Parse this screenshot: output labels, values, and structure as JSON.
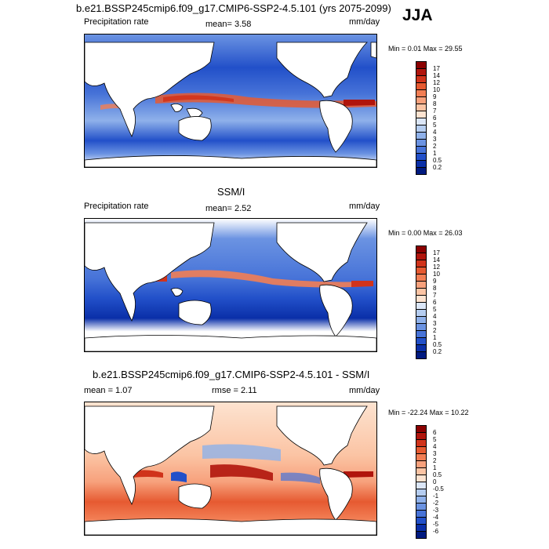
{
  "header": {
    "title": "b.e21.BSSP245cmip6.f09_g17.CMIP6-SSP2-4.5.101 (yrs 2075-2099)",
    "season": "JJA"
  },
  "panels": [
    {
      "title": "",
      "left_label": "Precipitation rate",
      "center_label": "mean=  3.58",
      "right_label": "mm/day",
      "minmax": "Min =   0.01 Max =   29.55",
      "colorbar_labels": [
        "17",
        "14",
        "12",
        "10",
        "9",
        "8",
        "7",
        "6",
        "5",
        "4",
        "3",
        "2",
        "1",
        "0.5",
        "0.2"
      ],
      "colorbar_colors": [
        "#8b0000",
        "#b0150c",
        "#d0331b",
        "#e65a31",
        "#f27e54",
        "#f7a17c",
        "#fbc4a4",
        "#fde3d0",
        "#dbe6f7",
        "#b5cdf0",
        "#8fb1ea",
        "#6b93e2",
        "#4773d8",
        "#2250c9",
        "#0a2fa8",
        "#001a80"
      ]
    },
    {
      "title": "SSM/I",
      "left_label": "Precipitation rate",
      "center_label": "mean=  2.52",
      "right_label": "mm/day",
      "minmax": "Min =   0.00 Max =   26.03",
      "colorbar_labels": [
        "17",
        "14",
        "12",
        "10",
        "9",
        "8",
        "7",
        "6",
        "5",
        "4",
        "3",
        "2",
        "1",
        "0.5",
        "0.2"
      ],
      "colorbar_colors": [
        "#8b0000",
        "#b0150c",
        "#d0331b",
        "#e65a31",
        "#f27e54",
        "#f7a17c",
        "#fbc4a4",
        "#fde3d0",
        "#dbe6f7",
        "#b5cdf0",
        "#8fb1ea",
        "#6b93e2",
        "#4773d8",
        "#2250c9",
        "#0a2fa8",
        "#001a80"
      ]
    },
    {
      "title": "b.e21.BSSP245cmip6.f09_g17.CMIP6-SSP2-4.5.101 - SSM/I",
      "left_label": "mean =   1.07",
      "center_label": "rmse =   2.11",
      "right_label": "mm/day",
      "minmax": "Min = -22.24 Max =   10.22",
      "colorbar_labels": [
        "6",
        "5",
        "4",
        "3",
        "2",
        "1",
        "0.5",
        "0",
        "-0.5",
        "-1",
        "-2",
        "-3",
        "-4",
        "-5",
        "-6"
      ],
      "colorbar_colors": [
        "#8b0000",
        "#b0150c",
        "#d0331b",
        "#e65a31",
        "#f27e54",
        "#f7a17c",
        "#fbc4a4",
        "#fde3d0",
        "#dbe6f7",
        "#b5cdf0",
        "#8fb1ea",
        "#6b93e2",
        "#4773d8",
        "#2250c9",
        "#0a2fa8",
        "#001a80"
      ]
    }
  ]
}
